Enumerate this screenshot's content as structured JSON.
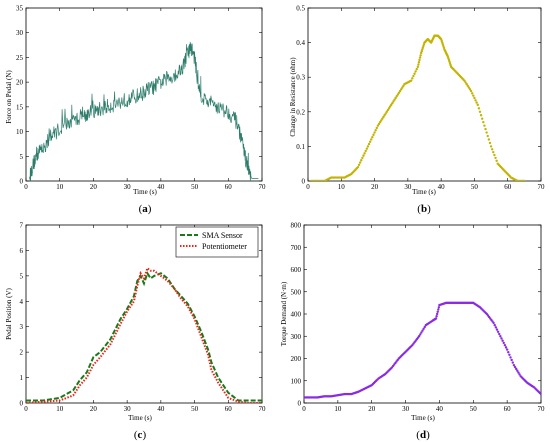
{
  "chart_data": [
    {
      "id": "a",
      "type": "line",
      "caption_open": "(",
      "caption_letter": "a",
      "caption_close": ")",
      "xlabel": "Time (s)",
      "ylabel": "Force on Pedal (N)",
      "xlim": [
        0,
        70
      ],
      "ylim": [
        0,
        35
      ],
      "xticks": [
        0,
        10,
        20,
        30,
        40,
        50,
        60,
        70
      ],
      "yticks": [
        0,
        5,
        10,
        15,
        20,
        25,
        30,
        35
      ],
      "grid": false,
      "series": [
        {
          "color": "#2e7d6b",
          "style": "solid",
          "noise": 1.6,
          "x": [
            1,
            2,
            3,
            4,
            6,
            8,
            10,
            12,
            14,
            16,
            18,
            20,
            22,
            24,
            26,
            28,
            30,
            32,
            34,
            36,
            38,
            40,
            42,
            44,
            46,
            47,
            48,
            49,
            50,
            51,
            52,
            54,
            56,
            58,
            60,
            62,
            63,
            64,
            65,
            66,
            67,
            68,
            69
          ],
          "y": [
            0.5,
            3,
            5,
            6,
            7.5,
            9.5,
            10.5,
            11.5,
            12,
            13,
            13.5,
            14,
            14.5,
            15,
            15.5,
            16,
            16.5,
            17,
            17.5,
            18.5,
            19,
            20,
            20.5,
            21.5,
            22.5,
            24,
            26,
            27,
            25,
            20,
            17,
            16,
            15.5,
            14.5,
            14,
            12.5,
            11,
            8,
            5,
            2,
            0.5,
            0.5,
            0.5
          ]
        }
      ]
    },
    {
      "id": "b",
      "type": "scatter",
      "caption_open": "(",
      "caption_letter": "b",
      "caption_close": ")",
      "xlabel": "Time (s)",
      "ylabel": "Change in Resistance (ohm)",
      "xlim": [
        0,
        70
      ],
      "ylim": [
        0,
        0.5
      ],
      "xticks": [
        0,
        10,
        20,
        30,
        40,
        50,
        60,
        70
      ],
      "yticks": [
        0,
        0.1,
        0.2,
        0.3,
        0.4,
        0.5
      ],
      "grid": false,
      "series": [
        {
          "color": "#c2b400",
          "style": "dots",
          "x": [
            1,
            3,
            5,
            7,
            9,
            11,
            13,
            15,
            17,
            19,
            21,
            23,
            25,
            27,
            29,
            31,
            33,
            34,
            35,
            36,
            37,
            38,
            39,
            40,
            41,
            42,
            43,
            45,
            47,
            49,
            51,
            53,
            55,
            57,
            59,
            61,
            63,
            65
          ],
          "y": [
            0.0,
            0.0,
            0.0,
            0.01,
            0.01,
            0.01,
            0.02,
            0.04,
            0.08,
            0.12,
            0.16,
            0.19,
            0.22,
            0.25,
            0.28,
            0.29,
            0.33,
            0.37,
            0.4,
            0.41,
            0.4,
            0.42,
            0.42,
            0.41,
            0.38,
            0.36,
            0.33,
            0.31,
            0.29,
            0.26,
            0.22,
            0.16,
            0.1,
            0.05,
            0.03,
            0.01,
            0.0,
            0.0
          ]
        }
      ]
    },
    {
      "id": "c",
      "type": "line",
      "caption_open": "(",
      "caption_letter": "c",
      "caption_close": ")",
      "xlabel": "Time (s)",
      "ylabel": "Pedal Position (V)",
      "xlim": [
        0,
        70
      ],
      "ylim": [
        0,
        7
      ],
      "xticks": [
        0,
        10,
        20,
        30,
        40,
        50,
        60,
        70
      ],
      "yticks": [
        0,
        1,
        2,
        3,
        4,
        5,
        6,
        7
      ],
      "grid": false,
      "legend_position": "top-right",
      "series": [
        {
          "name": "SMA Sensor",
          "color": "#1a7a1a",
          "style": "dash",
          "x": [
            0,
            5,
            10,
            14,
            16,
            18,
            20,
            22,
            25,
            28,
            30,
            32,
            33,
            34,
            35,
            36,
            37,
            38,
            40,
            42,
            44,
            46,
            48,
            50,
            52,
            54,
            55,
            57,
            60,
            63,
            66,
            70
          ],
          "y": [
            0.1,
            0.1,
            0.2,
            0.5,
            0.9,
            1.2,
            1.8,
            2.0,
            2.5,
            3.3,
            3.7,
            4.2,
            4.8,
            5.0,
            4.7,
            5.1,
            4.9,
            5.0,
            5.1,
            4.9,
            4.5,
            4.2,
            3.9,
            3.4,
            2.8,
            2.1,
            1.6,
            1.0,
            0.4,
            0.1,
            0.1,
            0.1
          ]
        },
        {
          "name": "Potentiometer",
          "color": "#ee2211",
          "style": "dot",
          "x": [
            0,
            5,
            10,
            14,
            16,
            18,
            20,
            22,
            25,
            28,
            30,
            32,
            33,
            34,
            35,
            36,
            37,
            38,
            40,
            42,
            44,
            46,
            48,
            50,
            52,
            54,
            55,
            57,
            60,
            63,
            66,
            70
          ],
          "y": [
            0.0,
            0.05,
            0.1,
            0.3,
            0.7,
            1.0,
            1.5,
            1.8,
            2.3,
            3.1,
            3.6,
            4.0,
            4.6,
            5.1,
            4.9,
            5.3,
            5.2,
            5.2,
            5.0,
            4.8,
            4.5,
            4.1,
            3.8,
            3.3,
            2.6,
            1.9,
            1.3,
            0.8,
            0.2,
            0.05,
            0.0,
            0.0
          ]
        }
      ]
    },
    {
      "id": "d",
      "type": "scatter",
      "caption_open": "(",
      "caption_letter": "d",
      "caption_close": ")",
      "xlabel": "Time (s)",
      "ylabel": "Torque Demand (N·m)",
      "xlim": [
        0,
        70
      ],
      "ylim": [
        0,
        800
      ],
      "xticks": [
        0,
        10,
        20,
        30,
        40,
        50,
        60,
        70
      ],
      "yticks": [
        0,
        100,
        200,
        300,
        400,
        500,
        600,
        700,
        800
      ],
      "grid": false,
      "series": [
        {
          "color": "#8a2be2",
          "style": "dots",
          "x": [
            0,
            2,
            4,
            6,
            8,
            10,
            12,
            14,
            16,
            18,
            20,
            22,
            24,
            26,
            28,
            30,
            32,
            34,
            36,
            38,
            39,
            40,
            42,
            44,
            46,
            48,
            50,
            52,
            54,
            56,
            58,
            60,
            62,
            64,
            66,
            68,
            70
          ],
          "y": [
            25,
            25,
            25,
            30,
            30,
            35,
            40,
            40,
            50,
            65,
            80,
            110,
            130,
            160,
            200,
            230,
            260,
            300,
            350,
            370,
            380,
            440,
            450,
            450,
            450,
            450,
            450,
            430,
            400,
            360,
            300,
            240,
            170,
            120,
            90,
            70,
            40
          ]
        }
      ]
    }
  ]
}
